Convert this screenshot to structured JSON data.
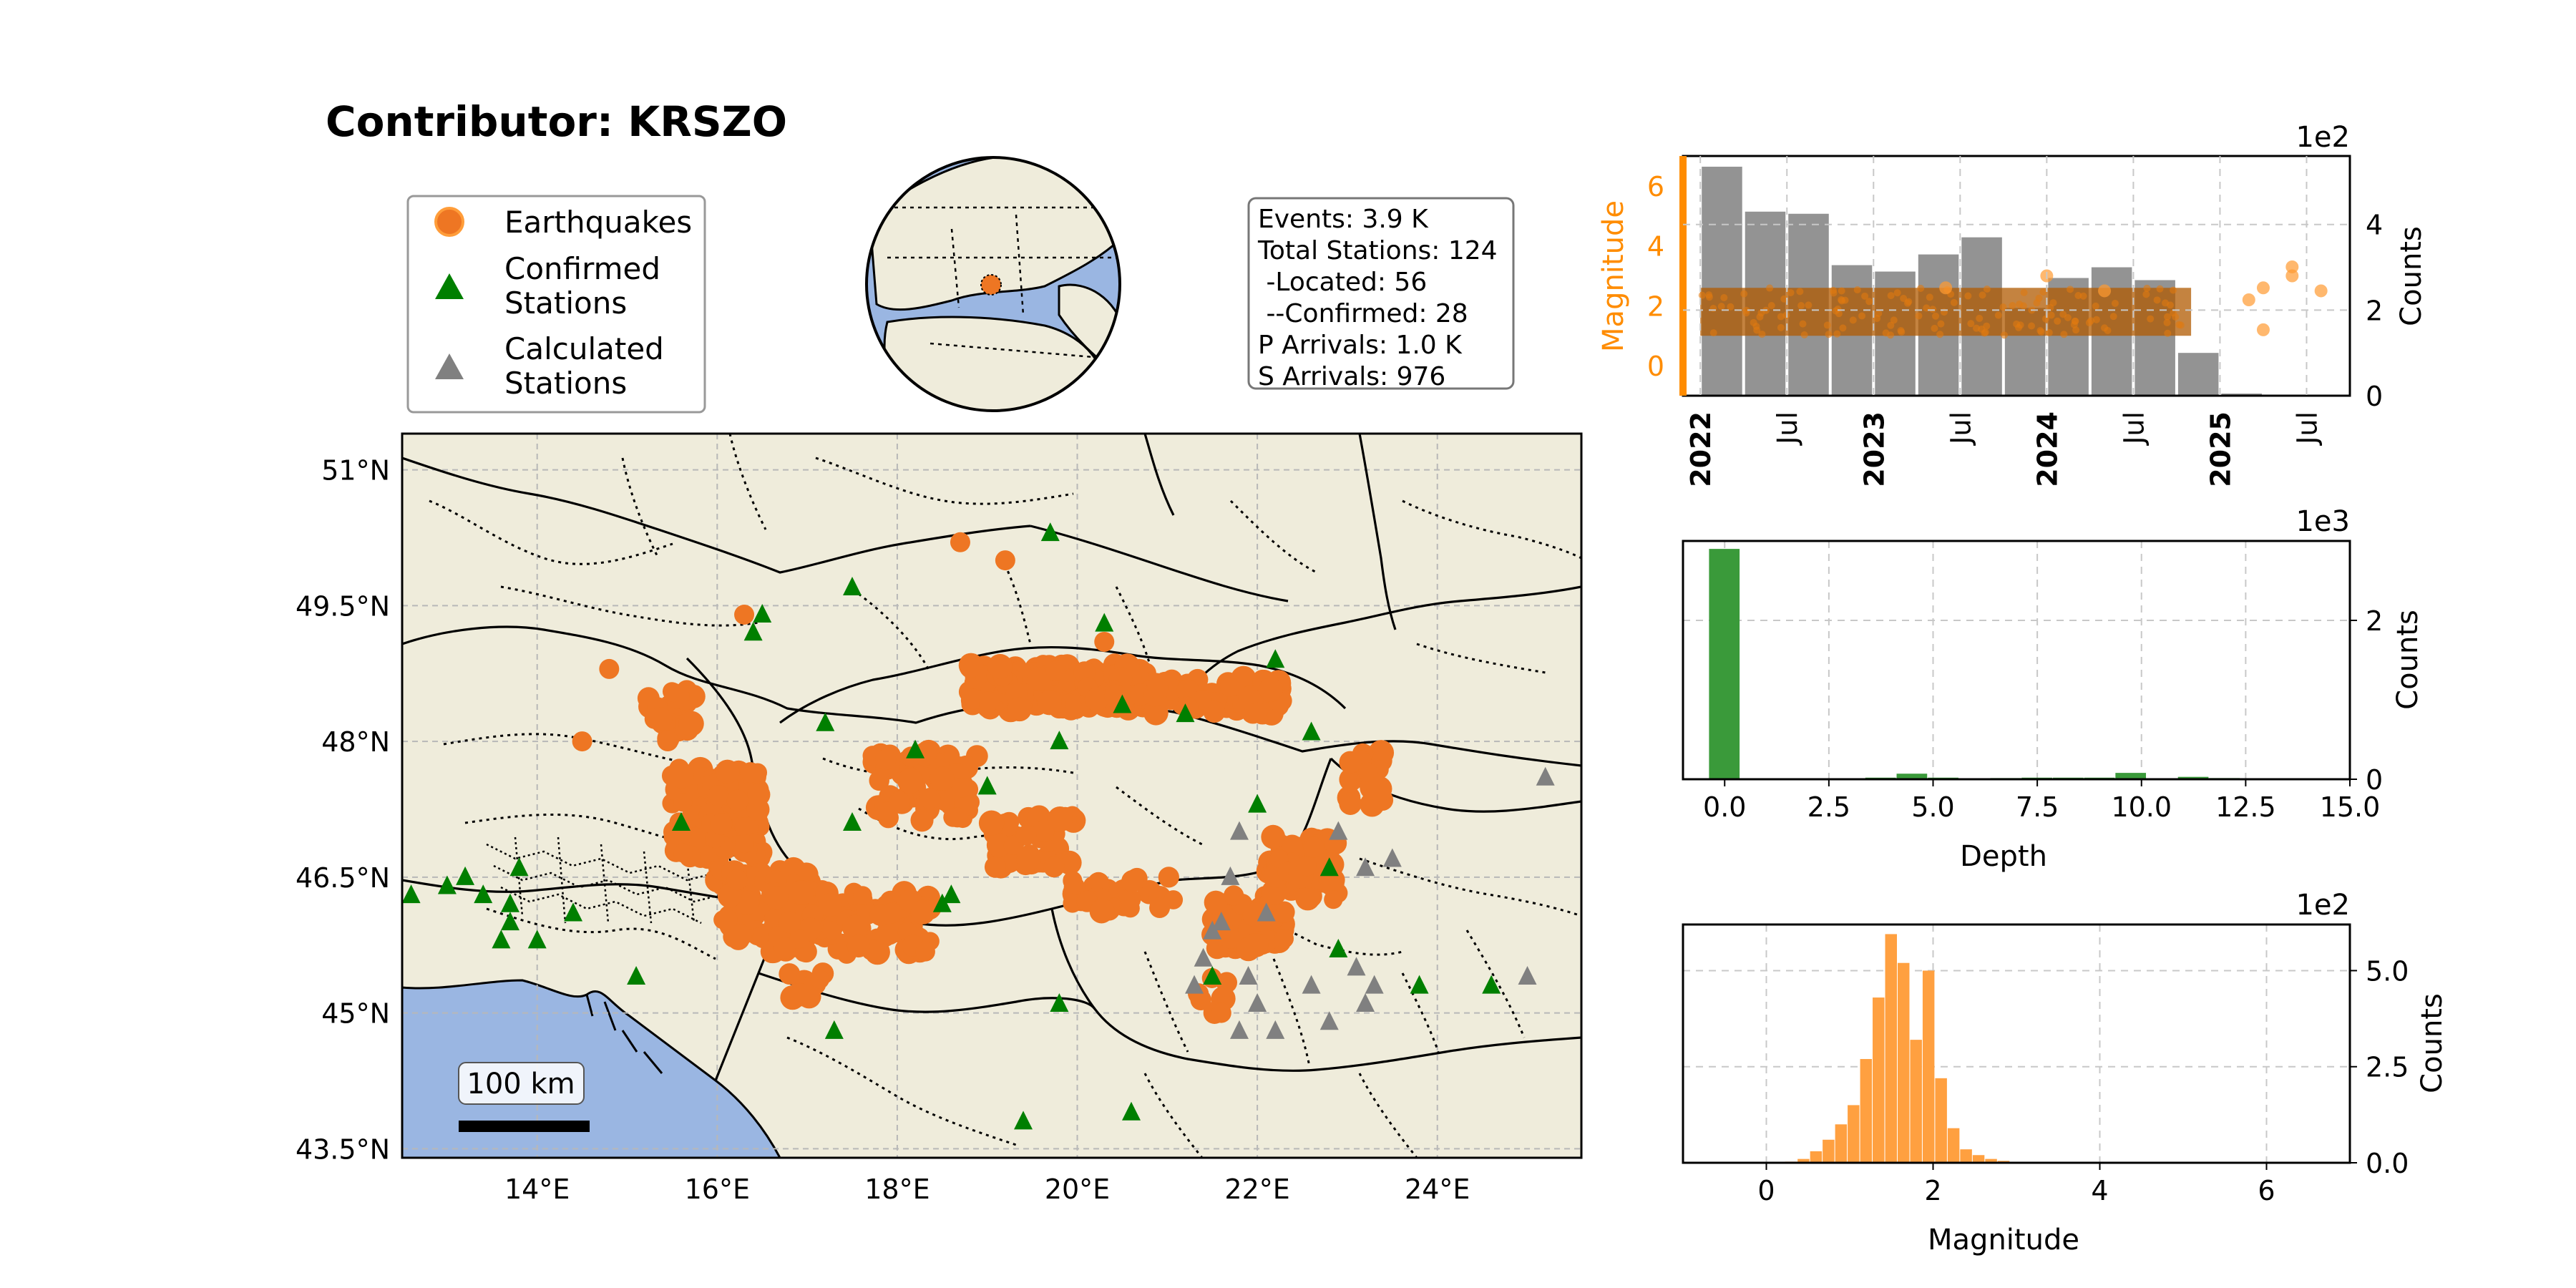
{
  "title": "Contributor: KRSZO",
  "legend": {
    "earthquakes": "Earthquakes",
    "confirmed_line1": "Confirmed",
    "confirmed_line2": "Stations",
    "calculated_line1": "Calculated",
    "calculated_line2": "Stations"
  },
  "info_box": {
    "lines": [
      "Events: 3.9 K",
      "Total Stations: 124",
      " -Located: 56",
      " --Confirmed: 28",
      "P Arrivals: 1.0 K",
      "S Arrivals: 976"
    ]
  },
  "colors": {
    "earthquake": "#ee7623",
    "confirmed_station": "#007f00",
    "calculated_station": "#808080",
    "land": "#efecdb",
    "sea": "#9ab6e2",
    "magnitude_axis": "#ff8c00",
    "depth_bar": "#3a9a3a",
    "magnitude_bar": "#ffa040"
  },
  "map": {
    "lat_ticks": [
      "51°N",
      "49.5°N",
      "48°N",
      "46.5°N",
      "45°N",
      "43.5°N"
    ],
    "lon_ticks": [
      "14°E",
      "16°E",
      "18°E",
      "20°E",
      "22°E",
      "24°E"
    ],
    "scale_bar_label": "100 km"
  },
  "chart_data": [
    {
      "type": "bar",
      "name": "events-over-time",
      "x_ticks": [
        "2022",
        "Jul",
        "2023",
        "Jul",
        "2024",
        "Jul",
        "2025",
        "Jul"
      ],
      "bold_ticks": [
        "2022",
        "2023",
        "2024",
        "2025"
      ],
      "counts_bins": [
        "2022-01",
        "2022-04",
        "2022-07",
        "2022-10",
        "2023-01",
        "2023-04",
        "2023-07",
        "2023-10",
        "2024-01",
        "2024-04",
        "2024-07",
        "2024-10",
        "2025-01",
        "2025-04",
        "2025-07"
      ],
      "counts_values": [
        535,
        430,
        425,
        305,
        290,
        330,
        370,
        205,
        275,
        300,
        270,
        100,
        5,
        2,
        0
      ],
      "counts_unit_label": "1e2",
      "right_ylabel": "Counts",
      "right_ylim": [
        0,
        5.6
      ],
      "right_ticks": [
        "0",
        "2",
        "4"
      ],
      "left_ylabel": "Magnitude",
      "left_ylim": [
        -1,
        7
      ],
      "left_ticks": [
        "0",
        "2",
        "4",
        "6"
      ],
      "magnitude_band": {
        "x_start": "2022-01",
        "x_end": "2024-11",
        "typical_min": 1.0,
        "typical_max": 2.6,
        "typical": 1.8
      },
      "magnitude_outliers": [
        {
          "x": "2023-06",
          "y": 2.6
        },
        {
          "x": "2024-01",
          "y": 3.0
        },
        {
          "x": "2024-05",
          "y": 2.5
        },
        {
          "x": "2025-03",
          "y": 2.2
        },
        {
          "x": "2025-04",
          "y": 2.6
        },
        {
          "x": "2025-06",
          "y": 3.3
        },
        {
          "x": "2025-06",
          "y": 3.0
        },
        {
          "x": "2025-08",
          "y": 2.5
        },
        {
          "x": "2025-04",
          "y": 1.2
        }
      ]
    },
    {
      "type": "bar",
      "name": "depth-histogram",
      "xlabel": "Depth",
      "ylabel": "Counts",
      "unit_label": "1e3",
      "x_ticks": [
        "0.0",
        "2.5",
        "5.0",
        "7.5",
        "10.0",
        "12.5",
        "15.0"
      ],
      "y_ticks": [
        "0",
        "2"
      ],
      "xlim": [
        -1,
        15
      ],
      "ylim": [
        0,
        3.0
      ],
      "bin_width": 0.75,
      "bins": [
        0.0,
        0.75,
        1.5,
        2.25,
        3.0,
        3.75,
        4.5,
        5.25,
        6.0,
        6.75,
        7.5,
        8.25,
        9.0,
        9.75,
        10.5,
        11.25,
        12.0,
        12.75,
        13.5,
        14.25
      ],
      "values": [
        2.9,
        0.0,
        0.0,
        0.005,
        0.01,
        0.02,
        0.07,
        0.02,
        0.01,
        0.015,
        0.02,
        0.02,
        0.02,
        0.08,
        0.01,
        0.03,
        0.015,
        0.005,
        0.002,
        0.0
      ]
    },
    {
      "type": "bar",
      "name": "magnitude-histogram",
      "xlabel": "Magnitude",
      "ylabel": "Counts",
      "unit_label": "1e2",
      "x_ticks": [
        "0",
        "2",
        "4",
        "6"
      ],
      "y_ticks": [
        "0.0",
        "2.5",
        "5.0"
      ],
      "xlim": [
        -1,
        7
      ],
      "ylim": [
        0,
        6.2
      ],
      "bin_width": 0.15,
      "bins": [
        0.15,
        0.3,
        0.45,
        0.6,
        0.75,
        0.9,
        1.05,
        1.2,
        1.35,
        1.5,
        1.65,
        1.8,
        1.95,
        2.1,
        2.25,
        2.4,
        2.55,
        2.7,
        2.85,
        3.0,
        3.15
      ],
      "values": [
        0.01,
        0.03,
        0.1,
        0.3,
        0.6,
        1.0,
        1.5,
        2.7,
        4.3,
        5.95,
        5.2,
        3.2,
        5.0,
        2.2,
        0.9,
        0.35,
        0.2,
        0.1,
        0.05,
        0.02,
        0.01
      ]
    }
  ]
}
